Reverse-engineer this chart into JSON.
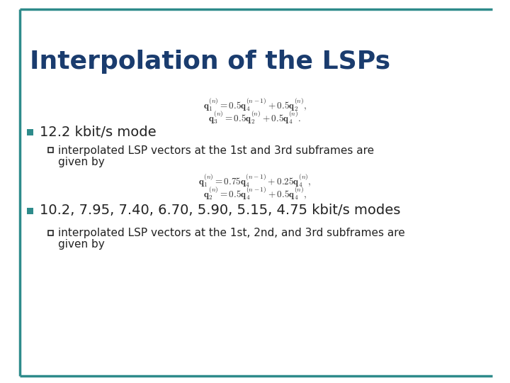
{
  "title": "Interpolation of the LSPs",
  "title_color": "#1a3c6e",
  "bg_color": "#FFFFFF",
  "border_color": "#2E8B8B",
  "bullet1_text": "12.2 kbit/s mode",
  "bullet2_text": "10.2, 7.95, 7.40, 6.70, 5.90, 5.15, 4.75 kbit/s modes",
  "sub1_line1": "interpolated LSP vectors at the 1st and 3rd subframes are",
  "sub1_line2": "given by",
  "sub2_line1": "interpolated LSP vectors at the 1st, 2nd, and 3rd subframes are",
  "sub2_line2": "given by",
  "text_color": "#222222",
  "bullet_color": "#2E8B8B",
  "formula_color": "#333333",
  "figwidth": 7.2,
  "figheight": 5.4,
  "dpi": 100
}
